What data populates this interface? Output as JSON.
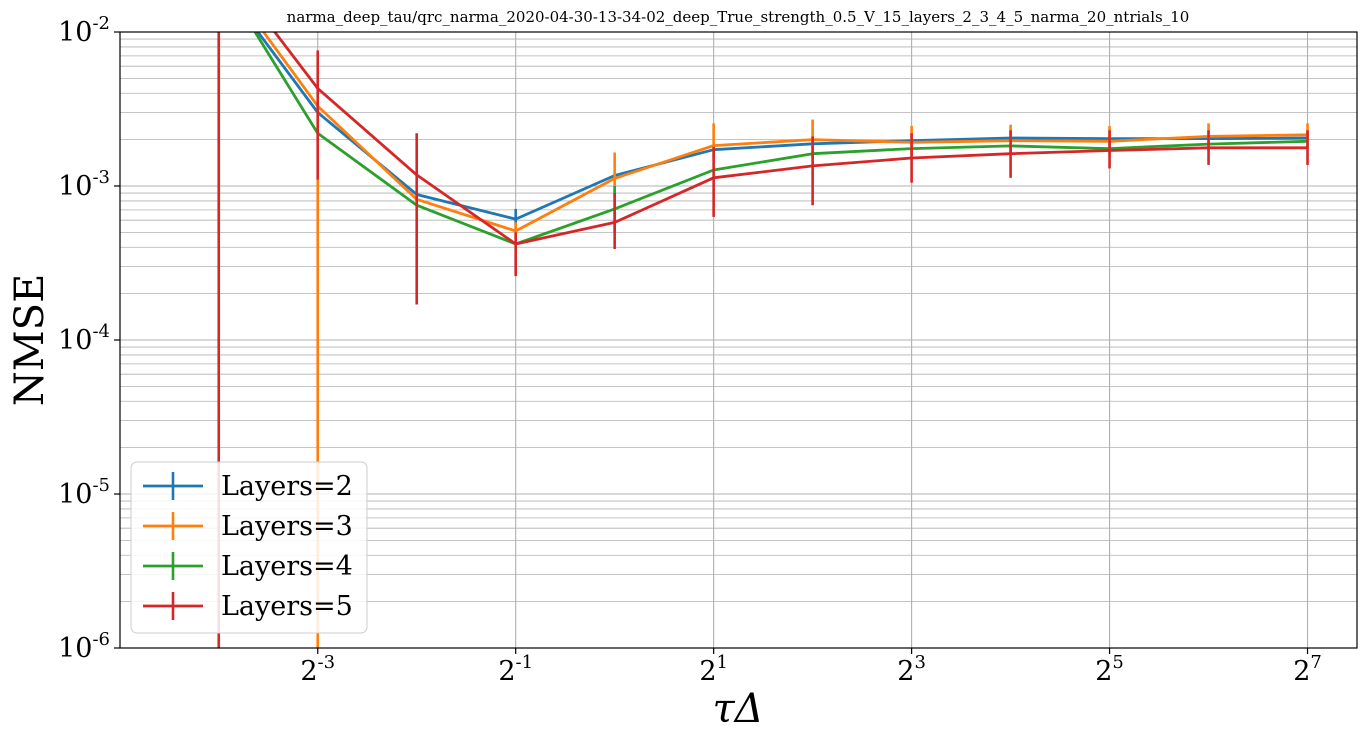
{
  "chart_data": {
    "type": "line",
    "title": "narma_deep_tau/qrc_narma_2020-04-30-13-34-02_deep_True_strength_0.5_V_15_layers_2_3_4_5_narma_20_ntrials_10",
    "xlabel": "τΔ",
    "ylabel": "NMSE",
    "x_scale": "log2",
    "y_scale": "log10",
    "xlim": [
      0.0313,
      181
    ],
    "ylim": [
      1e-06,
      0.01
    ],
    "x_ticks": [
      {
        "value": 0.125,
        "base": "2",
        "exp": "-3"
      },
      {
        "value": 0.5,
        "base": "2",
        "exp": "-1"
      },
      {
        "value": 2,
        "base": "2",
        "exp": "1"
      },
      {
        "value": 8,
        "base": "2",
        "exp": "3"
      },
      {
        "value": 32,
        "base": "2",
        "exp": "5"
      },
      {
        "value": 128,
        "base": "2",
        "exp": "7"
      }
    ],
    "y_ticks": [
      {
        "value": 1e-06,
        "base": "10",
        "exp": "-6"
      },
      {
        "value": 1e-05,
        "base": "10",
        "exp": "-5"
      },
      {
        "value": 0.0001,
        "base": "10",
        "exp": "-4"
      },
      {
        "value": 0.001,
        "base": "10",
        "exp": "-3"
      },
      {
        "value": 0.01,
        "base": "10",
        "exp": "-2"
      }
    ],
    "grid": true,
    "legend_position": "lower-left",
    "x": [
      0.0625,
      0.125,
      0.25,
      0.5,
      1,
      2,
      4,
      8,
      16,
      32,
      64,
      128
    ],
    "series": [
      {
        "name": "Layers=2",
        "color": "#1f77b4",
        "y": [
          0.022,
          0.003,
          0.00088,
          0.00061,
          0.00117,
          0.00172,
          0.00188,
          0.00197,
          0.00205,
          0.00203,
          0.00203,
          0.00205
        ],
        "yerr_low": [
          0.022,
          0.003,
          0.00088,
          0.00052,
          0.00117,
          0.00172,
          0.00188,
          0.00197,
          0.00205,
          0.00203,
          0.00203,
          0.00205
        ],
        "yerr_high": [
          0.022,
          0.003,
          0.00088,
          0.00071,
          0.00117,
          0.00172,
          0.00188,
          0.00197,
          0.00205,
          0.00203,
          0.00203,
          0.00205
        ]
      },
      {
        "name": "Layers=3",
        "color": "#ff7f0e",
        "y": [
          0.025,
          0.0033,
          0.00082,
          0.00051,
          0.00112,
          0.00183,
          0.002,
          0.00192,
          0.00197,
          0.00195,
          0.0021,
          0.00215
        ],
        "yerr_low": [
          0.0005,
          1e-06,
          0.00082,
          0.00045,
          0.00085,
          0.0015,
          0.0015,
          0.0015,
          0.0016,
          0.0016,
          0.0017,
          0.00175
        ],
        "yerr_high": [
          0.03,
          0.0033,
          0.00082,
          0.00058,
          0.00165,
          0.00255,
          0.0027,
          0.00245,
          0.0025,
          0.00245,
          0.00255,
          0.00255
        ]
      },
      {
        "name": "Layers=4",
        "color": "#2ca02c",
        "y": [
          0.024,
          0.0022,
          0.00075,
          0.00042,
          0.00071,
          0.00127,
          0.00162,
          0.00175,
          0.00182,
          0.00175,
          0.00187,
          0.00195
        ],
        "yerr_low": [
          0.024,
          0.0022,
          0.00075,
          0.00042,
          0.0005,
          0.00127,
          0.00162,
          0.00175,
          0.00182,
          0.00175,
          0.00187,
          0.00195
        ],
        "yerr_high": [
          0.024,
          0.0022,
          0.00075,
          0.00042,
          0.001,
          0.00127,
          0.00162,
          0.00175,
          0.00182,
          0.00175,
          0.00187,
          0.00195
        ]
      },
      {
        "name": "Layers=5",
        "color": "#d62728",
        "y": [
          0.03,
          0.0043,
          0.00118,
          0.00042,
          0.00058,
          0.00113,
          0.00135,
          0.00152,
          0.00162,
          0.0017,
          0.00177,
          0.00177
        ],
        "yerr_low": [
          1e-06,
          0.0011,
          0.00017,
          0.00026,
          0.00039,
          0.00063,
          0.00075,
          0.00105,
          0.00113,
          0.0013,
          0.00137,
          0.00137
        ],
        "yerr_high": [
          0.03,
          0.0076,
          0.0022,
          0.0005,
          0.0009,
          0.0018,
          0.0021,
          0.0022,
          0.0023,
          0.0023,
          0.0023,
          0.0023
        ]
      }
    ]
  }
}
